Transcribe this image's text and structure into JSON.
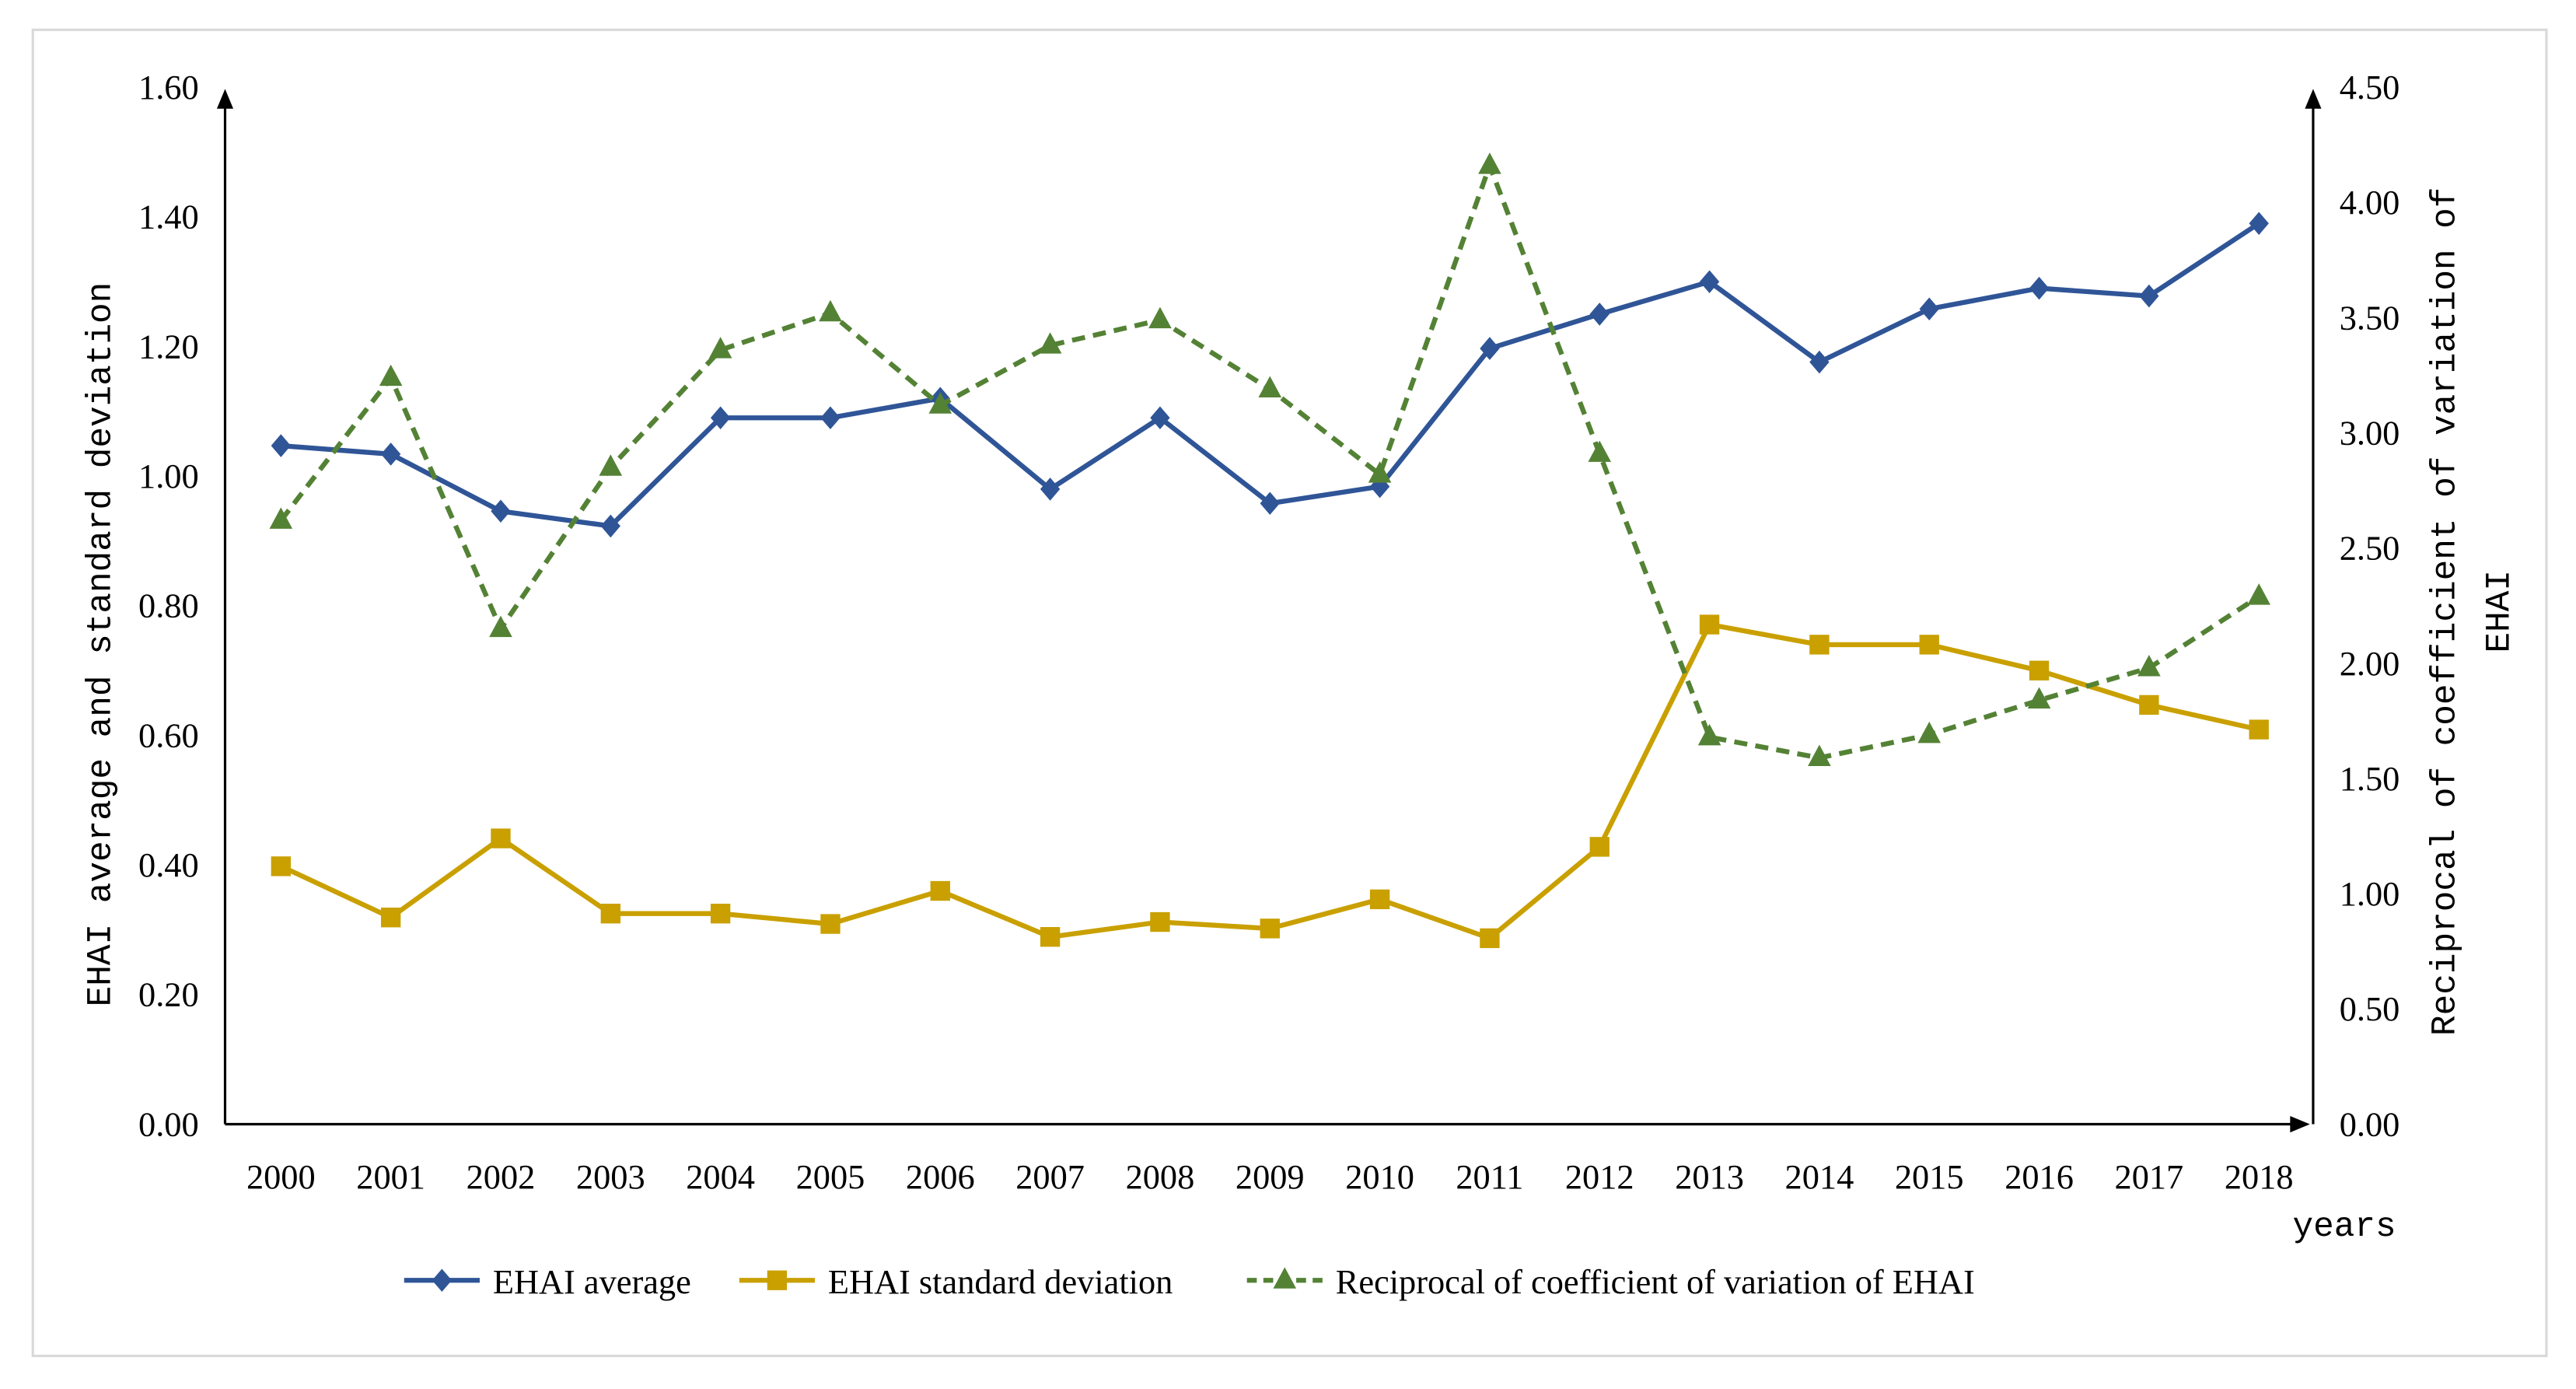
{
  "chart_data": {
    "type": "line",
    "title": "",
    "xlabel": "years",
    "ylabel_left": "EHAI average and standard deviation",
    "ylabel_right_line1": "Reciprocal of coefficient of variation of",
    "ylabel_right_line2": "EHAI",
    "ylim_left": [
      0,
      1.6
    ],
    "ylim_right": [
      0,
      4.5
    ],
    "yticks_left": [
      "0.00",
      "0.20",
      "0.40",
      "0.60",
      "0.80",
      "1.00",
      "1.20",
      "1.40",
      "1.60"
    ],
    "yticks_right": [
      "0.00",
      "0.50",
      "1.00",
      "1.50",
      "2.00",
      "2.50",
      "3.00",
      "3.50",
      "4.00",
      "4.50"
    ],
    "grid": false,
    "legend_position": "bottom",
    "categories": [
      "2000",
      "2001",
      "2002",
      "2003",
      "2004",
      "2005",
      "2006",
      "2007",
      "2008",
      "2009",
      "2010",
      "2011",
      "2012",
      "2013",
      "2014",
      "2015",
      "2016",
      "2017",
      "2018"
    ],
    "series": [
      {
        "name": "EHAI average",
        "axis": "left",
        "color": "#2F5597",
        "marker": "diamond",
        "dash": false,
        "values": [
          1.047,
          1.034,
          0.946,
          0.923,
          1.09,
          1.09,
          1.12,
          0.98,
          1.09,
          0.958,
          0.984,
          1.197,
          1.25,
          1.3,
          1.176,
          1.258,
          1.29,
          1.278,
          1.39
        ]
      },
      {
        "name": "EHAI standard deviation",
        "axis": "left",
        "color": "#C9A000",
        "marker": "square",
        "dash": false,
        "values": [
          0.398,
          0.319,
          0.441,
          0.325,
          0.325,
          0.309,
          0.36,
          0.289,
          0.312,
          0.302,
          0.347,
          0.287,
          0.428,
          0.771,
          0.74,
          0.74,
          0.7,
          0.647,
          0.609
        ]
      },
      {
        "name": "Reciprocal of coefficient of variation of EHAI",
        "axis": "right",
        "color": "#548235",
        "marker": "triangle",
        "dash": true,
        "values": [
          2.62,
          3.24,
          2.15,
          2.85,
          3.36,
          3.52,
          3.12,
          3.38,
          3.49,
          3.19,
          2.82,
          4.16,
          2.91,
          1.68,
          1.59,
          1.69,
          1.84,
          1.98,
          2.29
        ]
      }
    ]
  }
}
